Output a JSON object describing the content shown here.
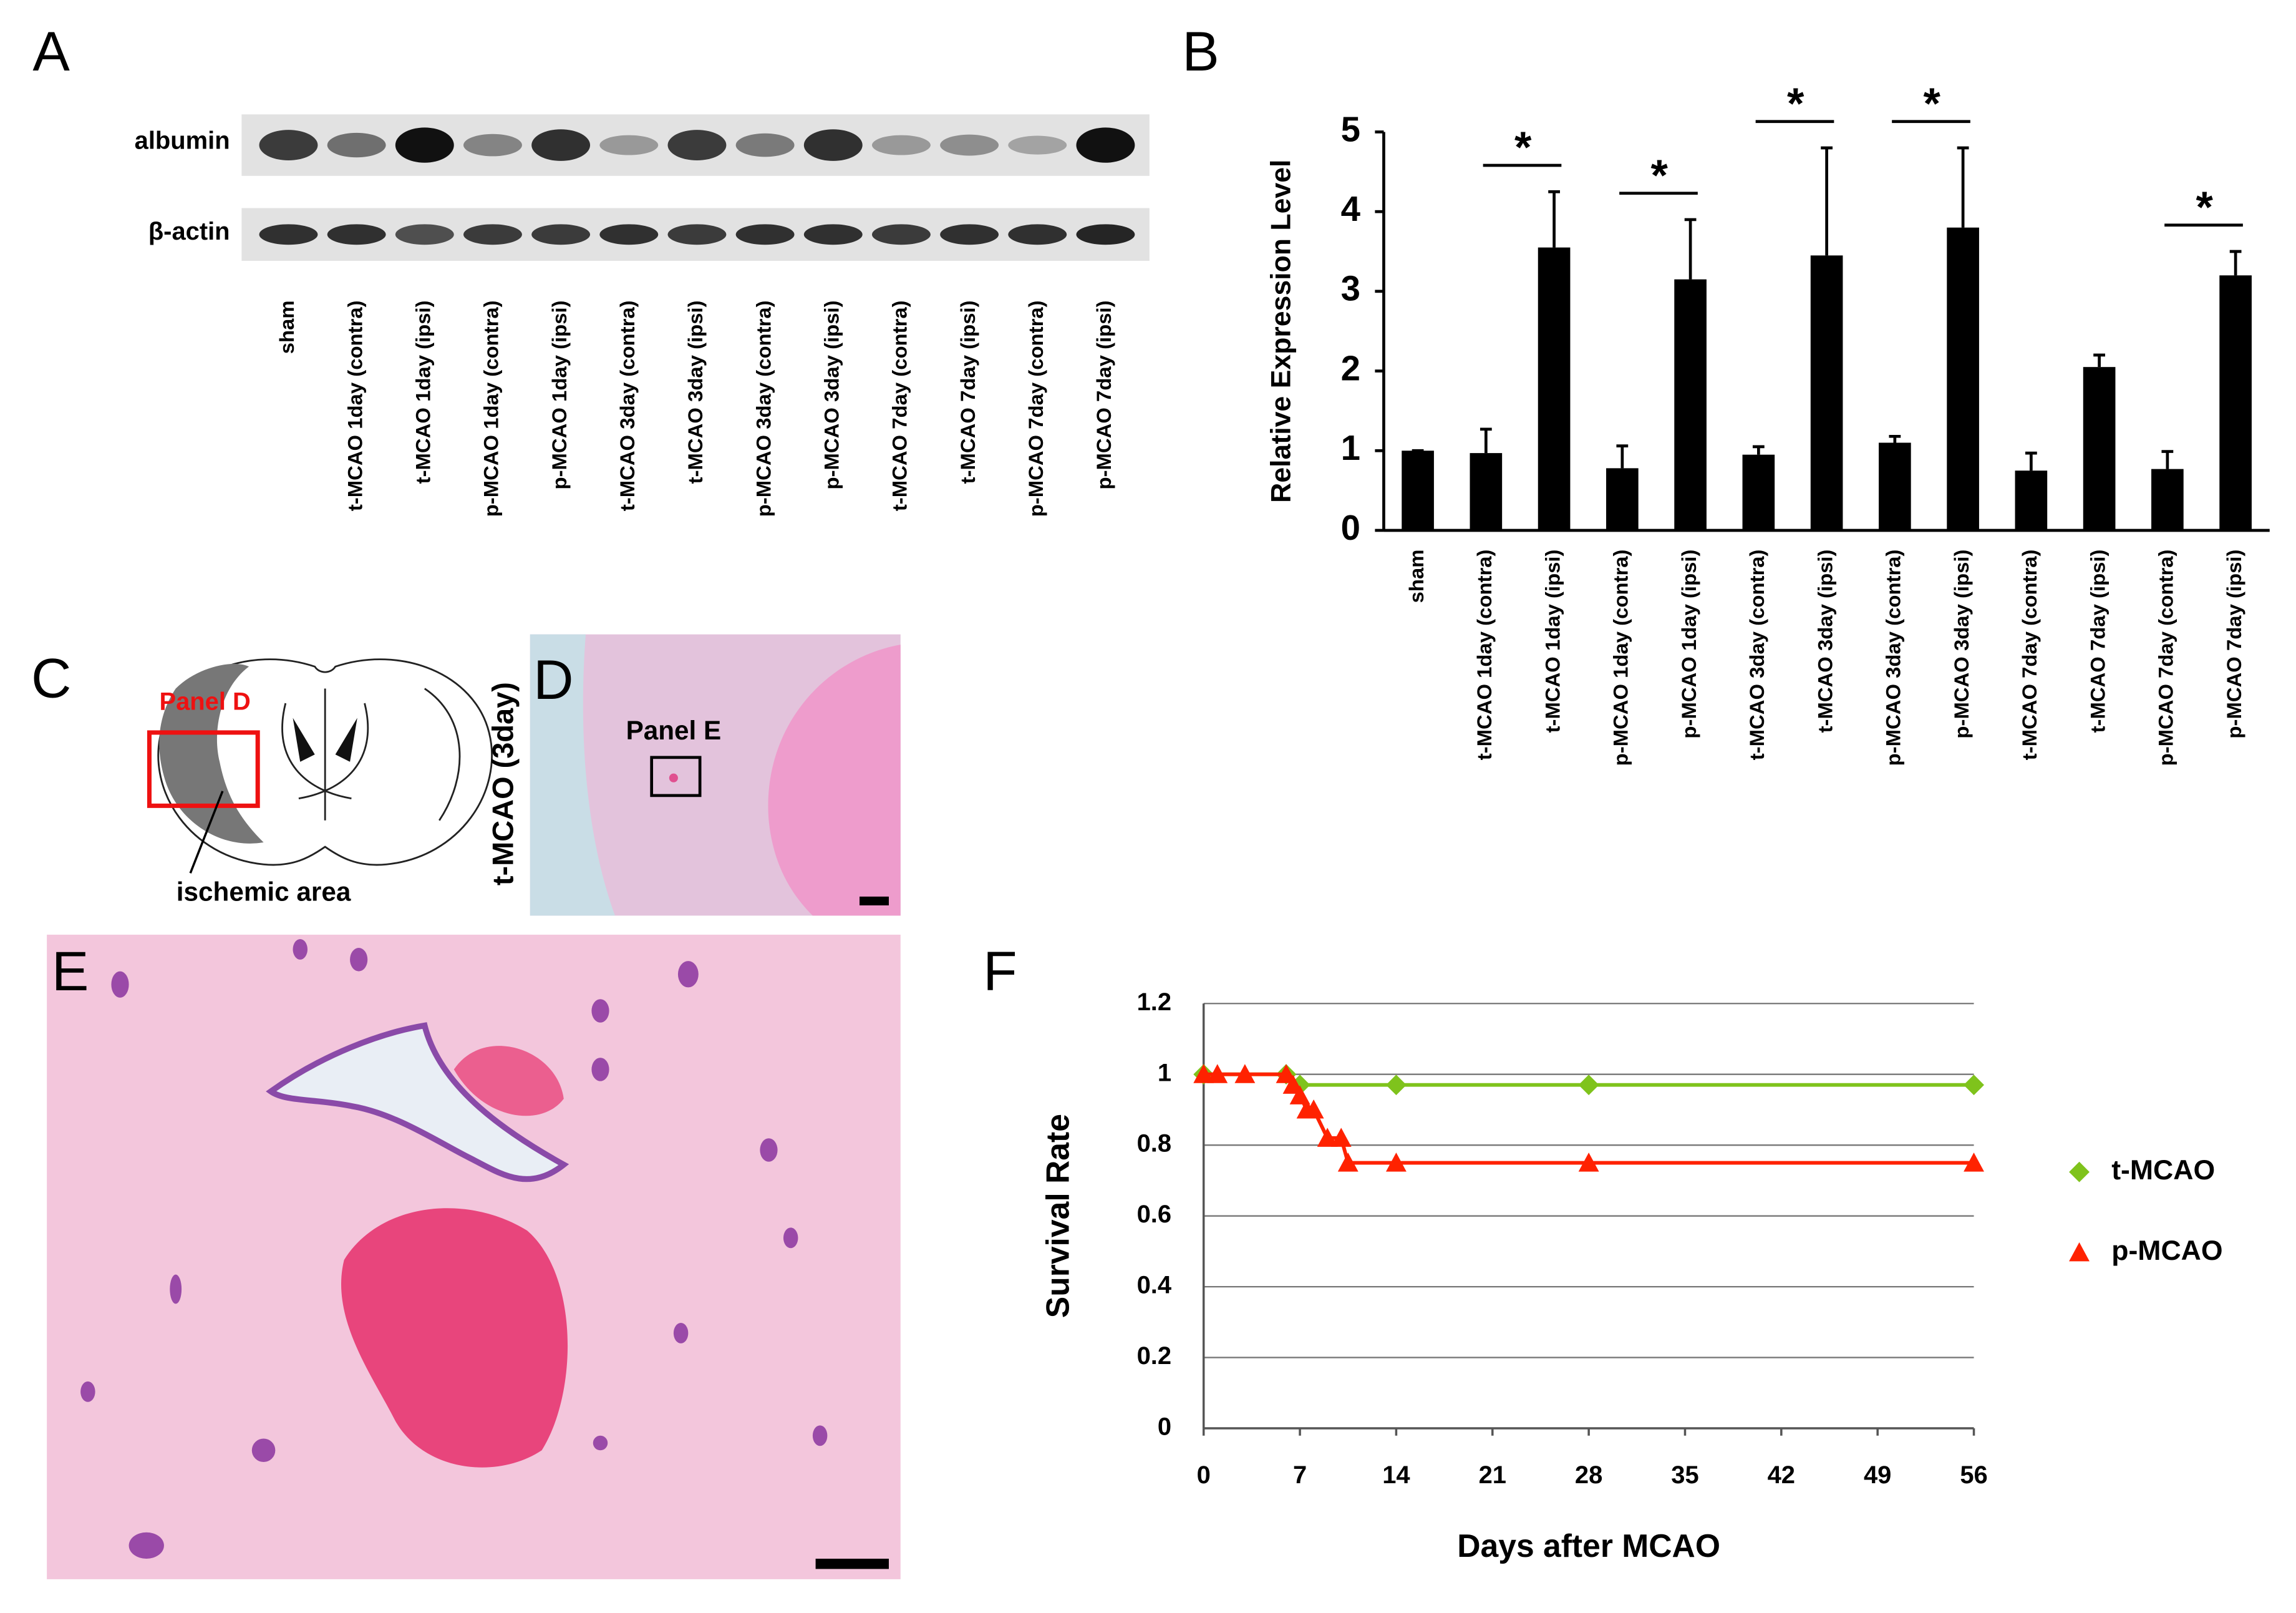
{
  "figure": {
    "panel_labels": [
      "A",
      "B",
      "C",
      "D",
      "E",
      "F"
    ]
  },
  "panel_a": {
    "rows": [
      "albumin",
      "β-actin"
    ],
    "lanes": [
      "sham",
      "t-MCAO 1day (contra)",
      "t-MCAO 1day (ipsi)",
      "p-MCAO 1day (contra)",
      "p-MCAO 1day (ipsi)",
      "t-MCAO 3day (contra)",
      "t-MCAO 3day (ipsi)",
      "p-MCAO 3day (contra)",
      "p-MCAO 3day (ipsi)",
      "t-MCAO 7day (contra)",
      "t-MCAO 7day (ipsi)",
      "p-MCAO 7day (contra)",
      "p-MCAO 7day (ipsi)"
    ]
  },
  "panel_c": {
    "region_label": "Panel D",
    "area_label": "ischemic area"
  },
  "panel_d": {
    "condition": "t-MCAO (3day)",
    "region_label": "Panel E"
  },
  "chart_data": [
    {
      "type": "bar",
      "y_label": "Relative Expression Level",
      "categories": [
        "sham",
        "t-MCAO 1day (contra)",
        "t-MCAO 1day (ipsi)",
        "p-MCAO 1day (contra)",
        "p-MCAO 1day (ipsi)",
        "t-MCAO 3day (contra)",
        "t-MCAO 3day (ipsi)",
        "p-MCAO 3day (contra)",
        "p-MCAO 3day (ipsi)",
        "t-MCAO 7day (contra)",
        "t-MCAO 7day (ipsi)",
        "p-MCAO 7day (contra)",
        "p-MCAO 7day (ipsi)"
      ],
      "values": [
        1,
        0.97,
        3.55,
        0.78,
        3.15,
        0.95,
        3.45,
        1.1,
        3.8,
        0.75,
        2.05,
        0.77,
        3.2
      ],
      "errors": [
        0,
        0.3,
        0.7,
        0.28,
        0.75,
        0.1,
        1.35,
        0.08,
        1.0,
        0.22,
        0.15,
        0.22,
        0.3
      ],
      "color": "#000000",
      "ylim": [
        0,
        5
      ],
      "yticks": [
        0,
        1,
        2,
        3,
        4,
        5
      ],
      "annotations": [
        {
          "text": "*",
          "categories": [
            "t-MCAO 1day (contra)",
            "t-MCAO 1day (ipsi)"
          ]
        },
        {
          "text": "*",
          "categories": [
            "p-MCAO 1day (contra)",
            "p-MCAO 1day (ipsi)"
          ]
        },
        {
          "text": "*",
          "categories": [
            "t-MCAO 3day (contra)",
            "t-MCAO 3day (ipsi)"
          ]
        },
        {
          "text": "*",
          "categories": [
            "p-MCAO 3day (contra)",
            "p-MCAO 3day (ipsi)"
          ]
        },
        {
          "text": "*",
          "categories": [
            "p-MCAO 7day (contra)",
            "p-MCAO 7day (ipsi)"
          ]
        }
      ]
    },
    {
      "type": "line",
      "x_label": "Days after MCAO",
      "y_label": "Survival Rate",
      "xlim": [
        0,
        56
      ],
      "xticks": [
        0,
        7,
        14,
        21,
        28,
        35,
        42,
        49,
        56
      ],
      "ylim": [
        0,
        1.2
      ],
      "yticks": [
        0,
        0.2,
        0.4,
        0.6,
        0.8,
        1,
        1.2
      ],
      "grid": true,
      "legend": "right",
      "series": [
        {
          "name": "t-MCAO",
          "color": "#7fc31c",
          "marker": "diamond",
          "x": [
            0,
            6,
            7,
            14,
            28,
            56
          ],
          "values": [
            1,
            1,
            0.97,
            0.97,
            0.97,
            0.97
          ]
        },
        {
          "name": "p-MCAO",
          "color": "#ff2200",
          "marker": "triangle",
          "x": [
            0,
            1,
            3,
            6,
            6.5,
            7,
            7.5,
            8,
            9,
            10,
            10.5,
            14,
            28,
            56
          ],
          "values": [
            1,
            1,
            1,
            1,
            0.97,
            0.94,
            0.9,
            0.9,
            0.82,
            0.82,
            0.75,
            0.75,
            0.75,
            0.75
          ]
        }
      ]
    }
  ]
}
